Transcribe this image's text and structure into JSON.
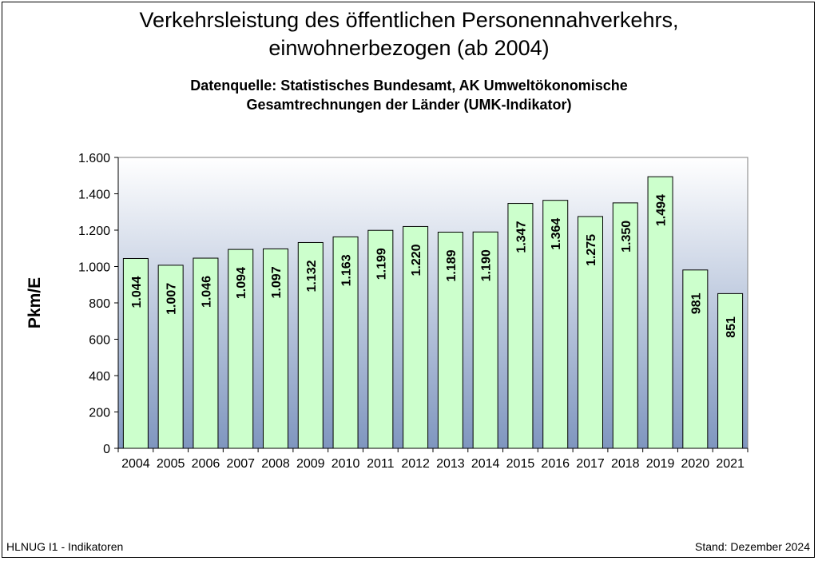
{
  "header": {
    "title_line1": "Verkehrsleistung des öffentlichen Personennahverkehrs,",
    "title_line2": "einwohnerbezogen (ab 2004)",
    "subtitle_line1": "Datenquelle: Statistisches Bundesamt, AK Umweltökonomische",
    "subtitle_line2": "Gesamtrechnungen der Länder (UMK-Indikator)"
  },
  "footer": {
    "left": "HLNUG I1 - Indikatoren",
    "right": "Stand: Dezember 2024"
  },
  "chart_data": {
    "type": "bar",
    "title": "Verkehrsleistung des öffentlichen Personennahverkehrs, einwohnerbezogen (ab 2004)",
    "ylabel": "Pkm/E",
    "xlabel": "",
    "ylim": [
      0,
      1600
    ],
    "yticks": [
      0,
      200,
      400,
      600,
      800,
      1000,
      1200,
      1400,
      1600
    ],
    "ytick_labels": [
      "0",
      "200",
      "400",
      "600",
      "800",
      "1.000",
      "1.200",
      "1.400",
      "1.600"
    ],
    "categories": [
      "2004",
      "2005",
      "2006",
      "2007",
      "2008",
      "2009",
      "2010",
      "2011",
      "2012",
      "2013",
      "2014",
      "2015",
      "2016",
      "2017",
      "2018",
      "2019",
      "2020",
      "2021"
    ],
    "values": [
      1044,
      1007,
      1046,
      1094,
      1097,
      1132,
      1163,
      1199,
      1220,
      1189,
      1190,
      1347,
      1364,
      1275,
      1350,
      1494,
      981,
      851
    ],
    "value_labels": [
      "1.044",
      "1.007",
      "1.046",
      "1.094",
      "1.097",
      "1.132",
      "1.163",
      "1.199",
      "1.220",
      "1.189",
      "1.190",
      "1.347",
      "1.364",
      "1.275",
      "1.350",
      "1.494",
      "981",
      "851"
    ],
    "grid": false,
    "legend": "none",
    "colors": {
      "bar_fill": "#ccffcc",
      "bar_stroke": "#000000",
      "plot_gradient_top": "#ffffff",
      "plot_gradient_bottom": "#7f96bf"
    }
  }
}
